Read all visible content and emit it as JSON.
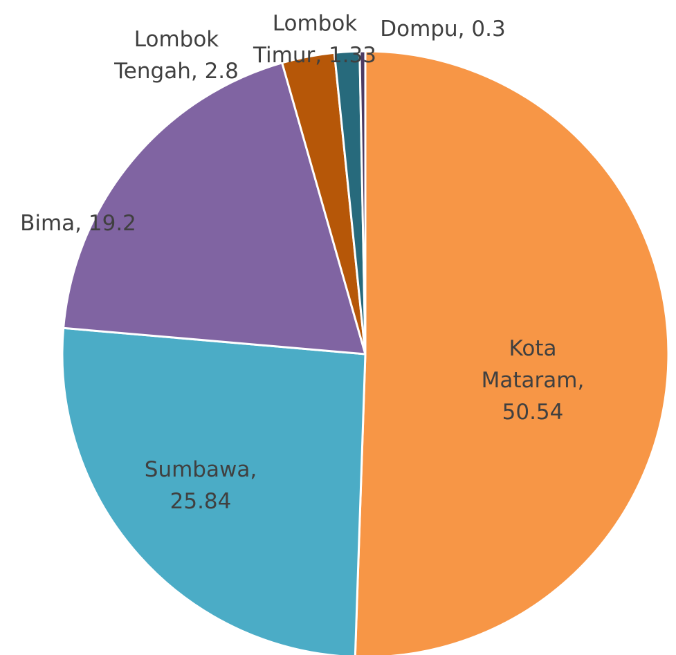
{
  "chart_data": {
    "type": "pie",
    "categories": [
      "Kota Mataram",
      "Sumbawa",
      "Bima",
      "Lombok Tengah",
      "Lombok Timur",
      "Dompu"
    ],
    "values": [
      50.54,
      25.84,
      19.2,
      2.8,
      1.33,
      0.3
    ],
    "colors": [
      "#f79646",
      "#4bacc6",
      "#8064a2",
      "#b65708",
      "#276a7c",
      "#4d3b62"
    ],
    "label_separator": ","
  }
}
